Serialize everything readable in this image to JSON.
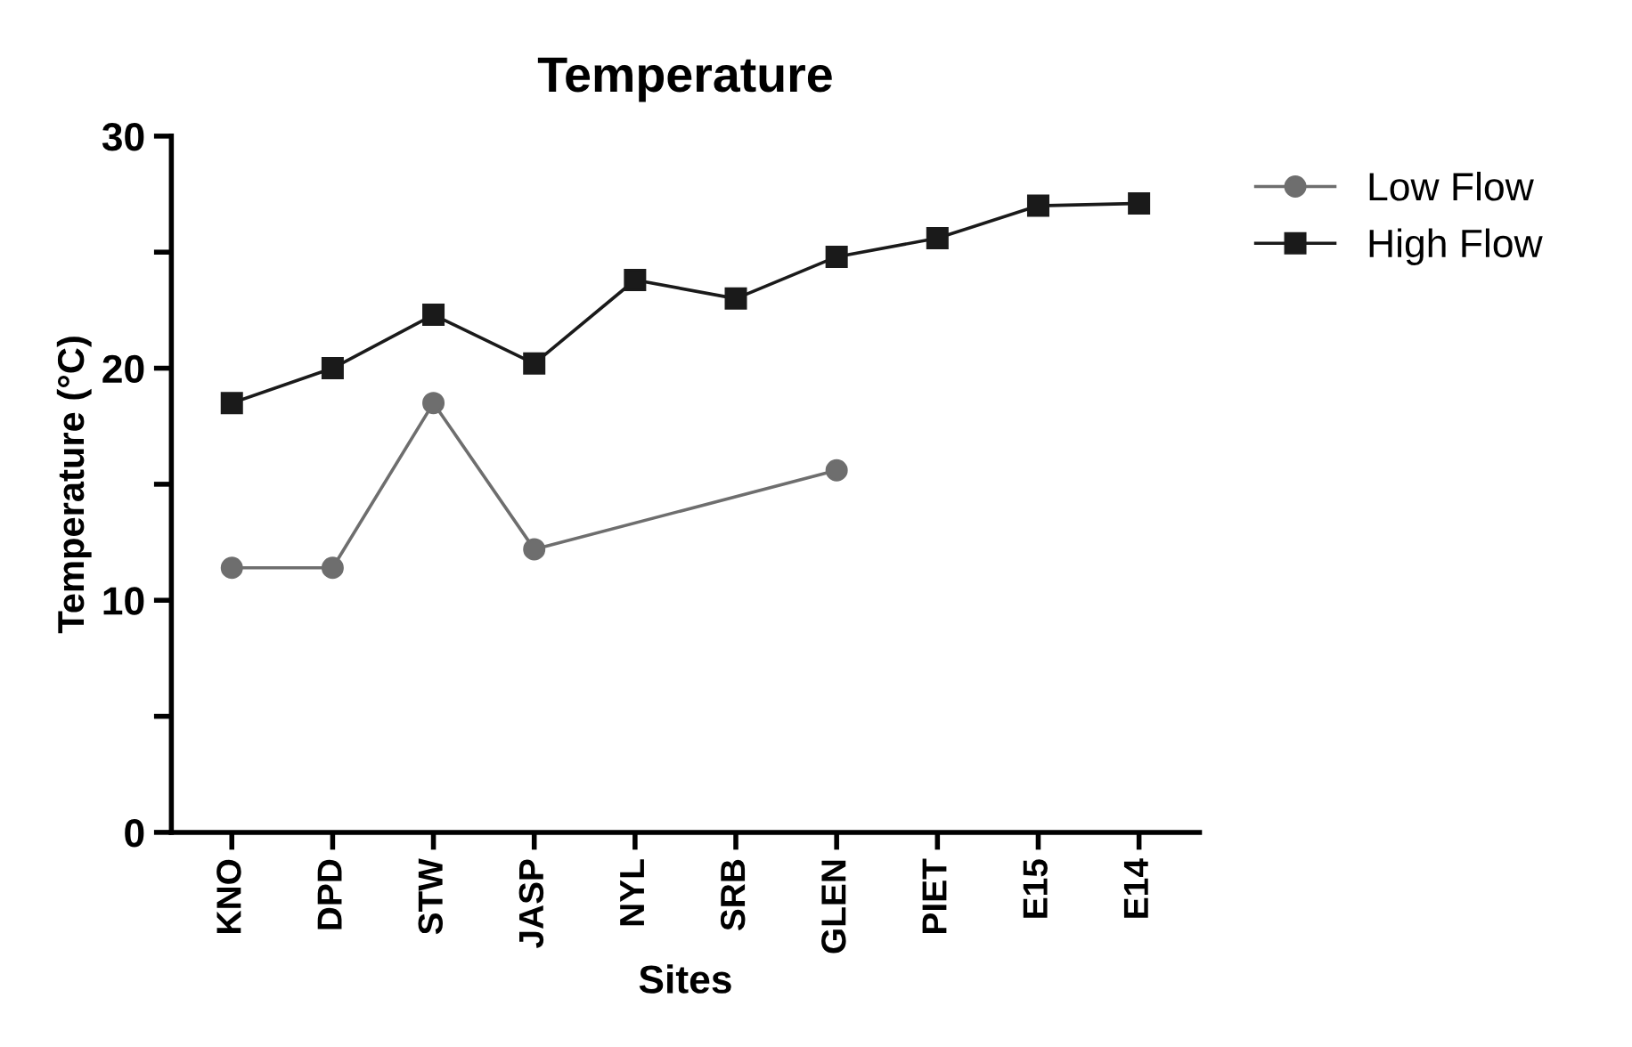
{
  "chart_data": {
    "type": "line",
    "title": "Temperature",
    "xlabel": "Sites",
    "ylabel": "Temperature (°C)",
    "categories": [
      "KNO",
      "DPD",
      "STW",
      "JASP",
      "NYL",
      "SRB",
      "GLEN",
      "PIET",
      "E15",
      "E14"
    ],
    "series": [
      {
        "name": "Low Flow",
        "color": "#6e6e6e",
        "marker": "circle",
        "values": [
          11.4,
          11.4,
          18.5,
          12.2,
          null,
          null,
          15.6,
          null,
          null,
          null
        ]
      },
      {
        "name": "High Flow",
        "color": "#1a1a1a",
        "marker": "square",
        "values": [
          18.5,
          20.0,
          22.3,
          20.2,
          23.8,
          23.0,
          24.8,
          25.6,
          27.0,
          27.1
        ]
      }
    ],
    "ylim": [
      0,
      30
    ],
    "yticks": [
      0,
      {
        "value": 5,
        "label": null
      },
      10,
      {
        "value": 15,
        "label": null
      },
      20,
      {
        "value": 25,
        "label": null
      },
      30
    ],
    "grid": false,
    "legend": "top right",
    "line_style": "solid"
  }
}
